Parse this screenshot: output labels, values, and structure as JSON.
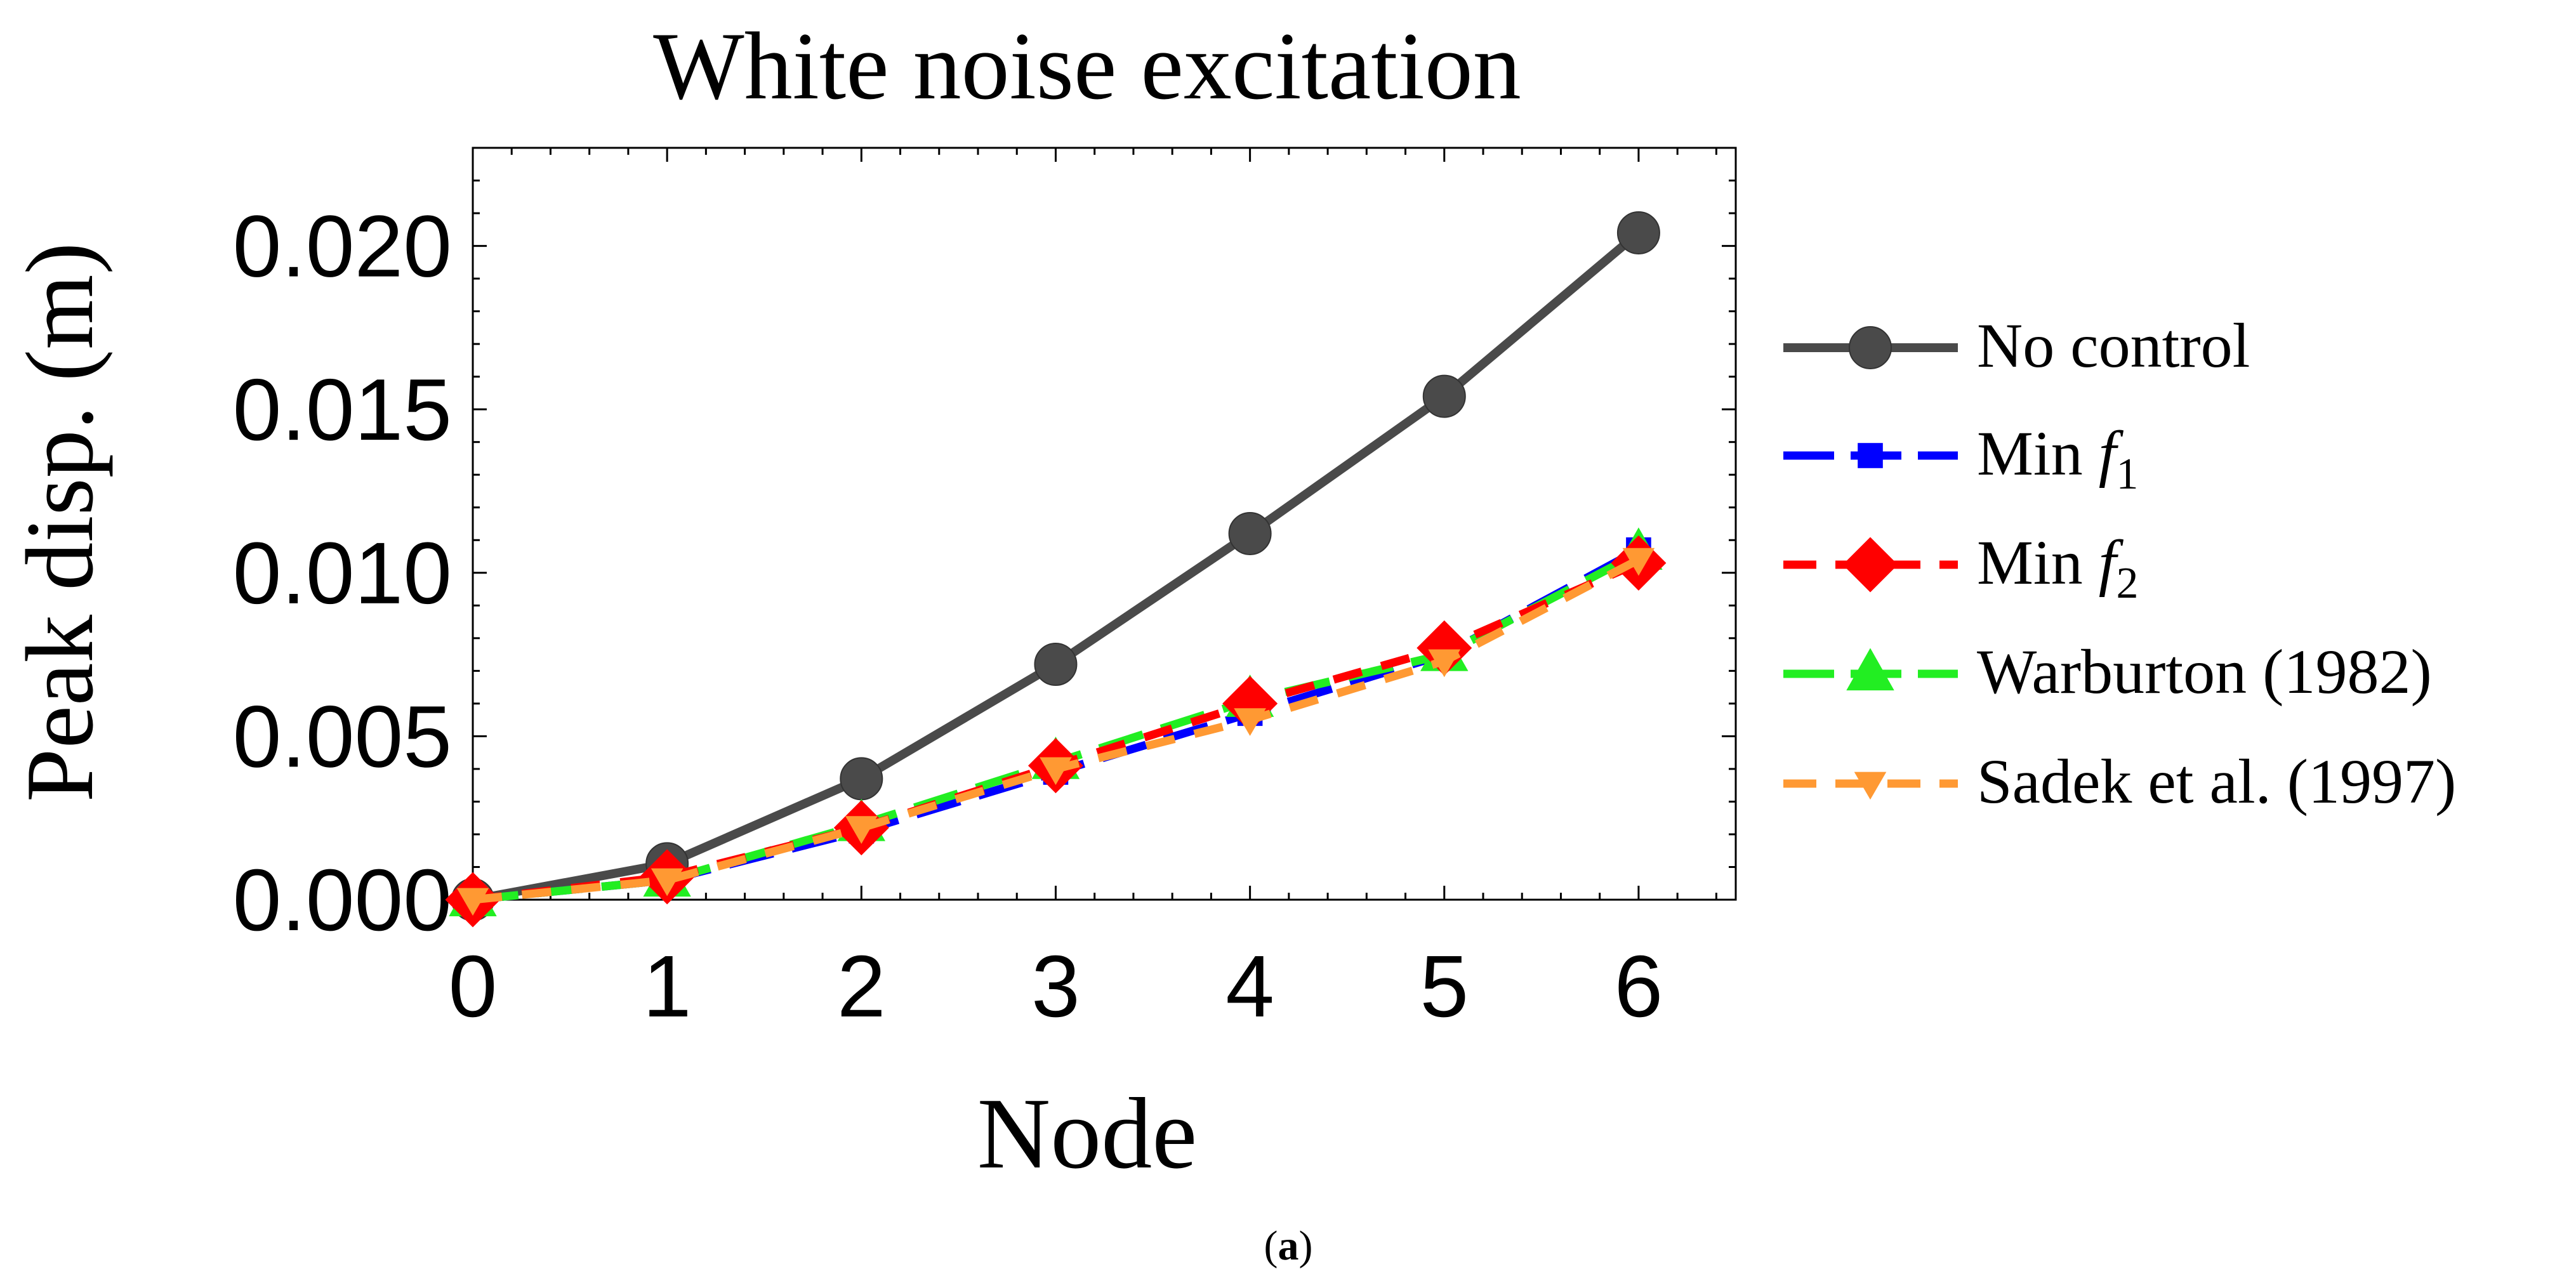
{
  "chart_data": {
    "type": "line",
    "title": "White noise excitation",
    "xlabel": "Node",
    "ylabel": "Peak disp. (m)",
    "caption_parts": [
      "(",
      "a",
      ")"
    ],
    "x": [
      0,
      1,
      2,
      3,
      4,
      5,
      6
    ],
    "xlim": [
      0,
      6.5
    ],
    "ylim": [
      0,
      0.023
    ],
    "x_ticks": [
      {
        "value": 0,
        "label": "0"
      },
      {
        "value": 1,
        "label": "1"
      },
      {
        "value": 2,
        "label": "2"
      },
      {
        "value": 3,
        "label": "3"
      },
      {
        "value": 4,
        "label": "4"
      },
      {
        "value": 5,
        "label": "5"
      },
      {
        "value": 6,
        "label": "6"
      }
    ],
    "y_ticks": [
      {
        "value": 0,
        "label": "0.000"
      },
      {
        "value": 0.005,
        "label": "0.005"
      },
      {
        "value": 0.01,
        "label": "0.010"
      },
      {
        "value": 0.015,
        "label": "0.015"
      },
      {
        "value": 0.02,
        "label": "0.020"
      }
    ],
    "legend_position": "right",
    "series": [
      {
        "name": "No control",
        "legend_text": "No control",
        "legend_sub": "",
        "color": "#4a4a4a",
        "marker": "circle",
        "dash": "solid",
        "values": [
          0,
          0.0011,
          0.0037,
          0.0072,
          0.0112,
          0.0154,
          0.0204
        ]
      },
      {
        "name": "Min f1",
        "legend_text": "Min ",
        "legend_italic": "f",
        "legend_sub": "1",
        "color": "#0000ff",
        "marker": "square",
        "dash": "longdash",
        "values": [
          0,
          0.0006,
          0.0021,
          0.0039,
          0.0057,
          0.0075,
          0.0107
        ]
      },
      {
        "name": "Min f2",
        "legend_text": "Min ",
        "legend_italic": "f",
        "legend_sub": "2",
        "color": "#ff0000",
        "marker": "diamond",
        "dash": "dash",
        "values": [
          0,
          0.0007,
          0.0022,
          0.0041,
          0.006,
          0.0077,
          0.0103
        ]
      },
      {
        "name": "Warburton (1982)",
        "legend_text": "Warburton (1982)",
        "legend_sub": "",
        "color": "#22ee22",
        "marker": "triangle-up",
        "dash": "longdash",
        "values": [
          0,
          0.0006,
          0.0023,
          0.0042,
          0.0061,
          0.0075,
          0.0106
        ]
      },
      {
        "name": "Sadek et al. (1997)",
        "legend_text": "Sadek et al. (1997)",
        "legend_sub": "",
        "color": "#ff9933",
        "marker": "triangle-down",
        "dash": "dash",
        "values": [
          0,
          0.0006,
          0.0022,
          0.004,
          0.0055,
          0.0073,
          0.0104
        ]
      }
    ]
  }
}
